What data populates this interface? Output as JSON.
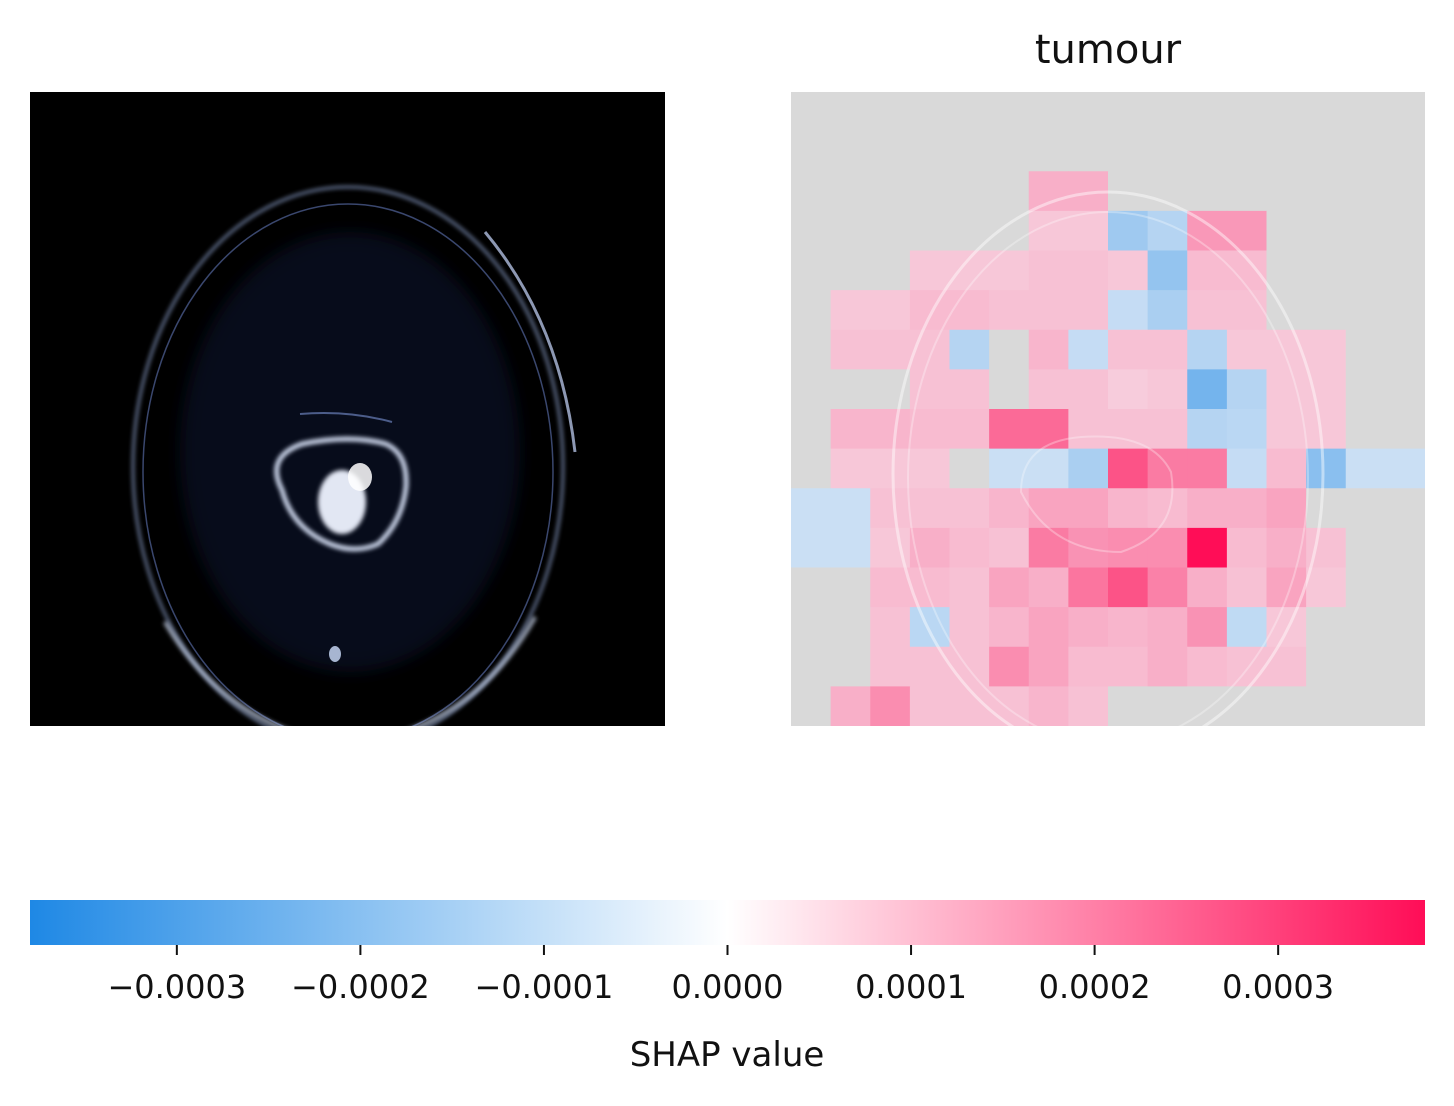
{
  "chart_data": {
    "type": "heatmap",
    "title": "tumour",
    "colorbar": {
      "label": "SHAP value",
      "range": [
        -0.00038,
        0.00038
      ],
      "ticks": [
        -0.0003,
        -0.0002,
        -0.0001,
        0.0,
        0.0001,
        0.0002,
        0.0003
      ],
      "tick_labels": [
        "−0.0003",
        "−0.0002",
        "−0.0001",
        "0.0000",
        "0.0001",
        "0.0002",
        "0.0003"
      ],
      "negative_color": "#1e88e5",
      "positive_color": "#ff0d57",
      "neutral_color": "#ffffff"
    },
    "grid_rows": 16,
    "grid_cols": 16,
    "values": [
      [
        0,
        0,
        0,
        0,
        0,
        0,
        0,
        0,
        0,
        0,
        0,
        0,
        0,
        0,
        0,
        0
      ],
      [
        0,
        0,
        0,
        0,
        0,
        0,
        0,
        0,
        0,
        0,
        0,
        0,
        0,
        0,
        0,
        0
      ],
      [
        0,
        0,
        0,
        0,
        0,
        0,
        6e-05,
        6e-05,
        0,
        0,
        0,
        0,
        0,
        0,
        0,
        0
      ],
      [
        0,
        0,
        0,
        0,
        0,
        0,
        2e-05,
        2e-05,
        -0.0001,
        -6e-05,
        0.0001,
        0.0001,
        0,
        0,
        0,
        0
      ],
      [
        0,
        0,
        0,
        2e-05,
        2e-05,
        2e-05,
        3e-05,
        3e-05,
        2e-05,
        -0.00012,
        4e-05,
        4e-05,
        0,
        0,
        0,
        0
      ],
      [
        0,
        2e-05,
        2e-05,
        4e-05,
        4e-05,
        3e-05,
        3e-05,
        3e-05,
        -3e-05,
        -8e-05,
        3e-05,
        3e-05,
        0,
        0,
        0,
        0
      ],
      [
        0,
        3e-05,
        3e-05,
        3e-05,
        -6e-05,
        0,
        5e-05,
        -3e-05,
        3e-05,
        3e-05,
        -6e-05,
        2e-05,
        2e-05,
        2e-05,
        0,
        0
      ],
      [
        0,
        0,
        0,
        3e-05,
        3e-05,
        0,
        3e-05,
        3e-05,
        1e-05,
        2e-05,
        -0.00018,
        -6e-05,
        2e-05,
        2e-05,
        0,
        0
      ],
      [
        0,
        5e-05,
        5e-05,
        4e-05,
        4e-05,
        0.00018,
        0.00018,
        3e-05,
        3e-05,
        3e-05,
        -6e-05,
        -5e-05,
        2e-05,
        2e-05,
        0,
        0
      ],
      [
        0,
        2e-05,
        2e-05,
        2e-05,
        0,
        -2e-05,
        -2e-05,
        -8e-05,
        0.00022,
        0.00015,
        0.00015,
        -3e-05,
        4e-05,
        -0.00014,
        -2e-05,
        -2e-05
      ],
      [
        -2e-05,
        -2e-05,
        3e-05,
        3e-05,
        3e-05,
        5e-05,
        8e-05,
        8e-05,
        5e-05,
        4e-05,
        6e-05,
        6e-05,
        8e-05,
        0,
        0,
        0
      ],
      [
        -2e-05,
        -2e-05,
        2e-05,
        6e-05,
        4e-05,
        3e-05,
        0.00015,
        0.00011,
        0.00012,
        0.00012,
        0.00034,
        4e-05,
        6e-05,
        3e-05,
        0,
        0
      ],
      [
        0,
        0,
        4e-05,
        4e-05,
        3e-05,
        8e-05,
        6e-05,
        0.00016,
        0.00022,
        0.00014,
        6e-05,
        3e-05,
        8e-05,
        2e-05,
        0,
        0
      ],
      [
        0,
        0,
        3e-05,
        -5e-05,
        3e-05,
        5e-05,
        8e-05,
        6e-05,
        5e-05,
        6e-05,
        0.00011,
        -4e-05,
        2e-05,
        0,
        0,
        0
      ],
      [
        0,
        0,
        3e-05,
        3e-05,
        3e-05,
        0.00012,
        8e-05,
        4e-05,
        4e-05,
        6e-05,
        4e-05,
        3e-05,
        3e-05,
        0,
        0,
        0
      ],
      [
        0,
        6e-05,
        0.00012,
        3e-05,
        3e-05,
        3e-05,
        5e-05,
        3e-05,
        0,
        0,
        0,
        0,
        0,
        0,
        0,
        0
      ]
    ]
  }
}
